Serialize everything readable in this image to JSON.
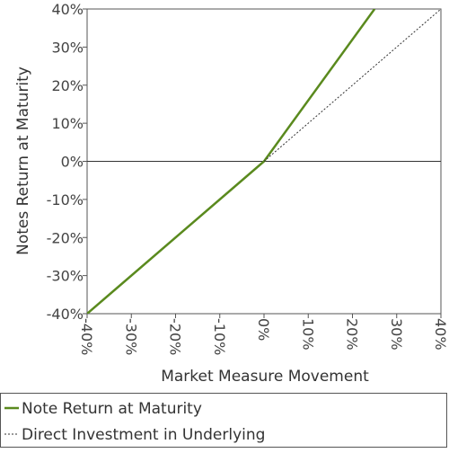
{
  "chart_data": {
    "type": "line",
    "title": "",
    "xlabel": "Market Measure Movement",
    "ylabel": "Notes Return at Maturity",
    "xlim": [
      -40,
      40
    ],
    "ylim": [
      -40,
      40
    ],
    "x_ticks": [
      "-40%",
      "-30%",
      "-20%",
      "-10%",
      "0%",
      "10%",
      "20%",
      "30%",
      "40%"
    ],
    "y_ticks": [
      "40%",
      "30%",
      "20%",
      "10%",
      "0%",
      "-10%",
      "-20%",
      "-30%",
      "-40%"
    ],
    "x_tick_values": [
      -40,
      -30,
      -20,
      -10,
      0,
      10,
      20,
      30,
      40
    ],
    "y_tick_values": [
      40,
      30,
      20,
      10,
      0,
      -10,
      -20,
      -30,
      -40
    ],
    "grid": false,
    "legend_position": "bottom",
    "series": [
      {
        "name": "Note Return at Maturity",
        "color": "#5a8a1e",
        "style": "solid",
        "x": [
          -40,
          0,
          25
        ],
        "y": [
          -40,
          0,
          40
        ]
      },
      {
        "name": "Direct Investment in Underlying",
        "color": "#333333",
        "style": "dotted",
        "x": [
          0,
          40
        ],
        "y": [
          0,
          40
        ]
      }
    ]
  }
}
